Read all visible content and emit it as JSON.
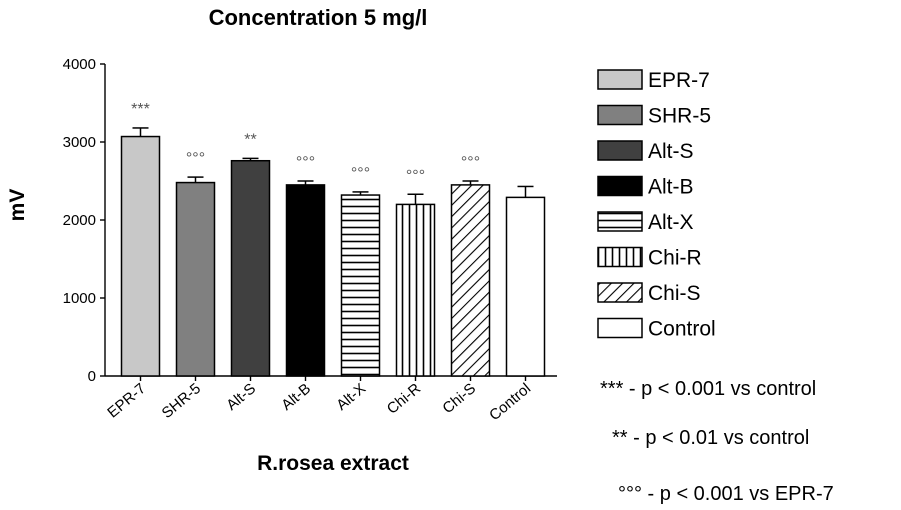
{
  "chart_data": {
    "type": "bar",
    "title": "Concentration 5 mg/l",
    "xlabel": "R.rosea extract",
    "ylabel": "mV",
    "ylim": [
      0,
      4000
    ],
    "yticks": [
      0,
      1000,
      2000,
      3000,
      4000
    ],
    "categories": [
      "EPR-7",
      "SHR-5",
      "Alt-S",
      "Alt-B",
      "Alt-X",
      "Chi-R",
      "Chi-S",
      "Control"
    ],
    "values": [
      3070,
      2480,
      2760,
      2450,
      2320,
      2200,
      2450,
      2290
    ],
    "errors": [
      110,
      70,
      30,
      50,
      40,
      130,
      50,
      140
    ],
    "significance": [
      "***",
      "°°°",
      "**",
      "°°°",
      "°°°",
      "°°°",
      "°°°",
      ""
    ],
    "bar_styles": [
      {
        "fill": "#c8c8c8",
        "pattern": "solid"
      },
      {
        "fill": "#808080",
        "pattern": "solid"
      },
      {
        "fill": "#404040",
        "pattern": "solid"
      },
      {
        "fill": "#000000",
        "pattern": "solid"
      },
      {
        "fill": "#ffffff",
        "pattern": "horizontal"
      },
      {
        "fill": "#ffffff",
        "pattern": "vertical"
      },
      {
        "fill": "#ffffff",
        "pattern": "diagonal"
      },
      {
        "fill": "#ffffff",
        "pattern": "solid"
      }
    ],
    "legend": [
      "EPR-7",
      "SHR-5",
      "Alt-S",
      "Alt-B",
      "Alt-X",
      "Chi-R",
      "Chi-S",
      "Control"
    ],
    "legend_position": "right",
    "grid": false
  },
  "notes": [
    "*** - p < 0.001 vs control",
    "** - p < 0.01 vs control",
    "°°° - p < 0.001 vs EPR-7"
  ]
}
